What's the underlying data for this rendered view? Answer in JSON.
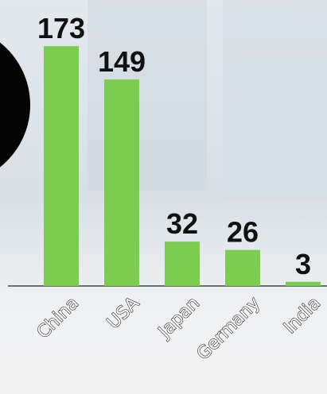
{
  "chart_data": {
    "type": "bar",
    "categories": [
      "China",
      "USA",
      "Japan",
      "Germany",
      "India"
    ],
    "values": [
      173,
      149,
      32,
      26,
      3
    ],
    "color": "#7ccc4f"
  }
}
